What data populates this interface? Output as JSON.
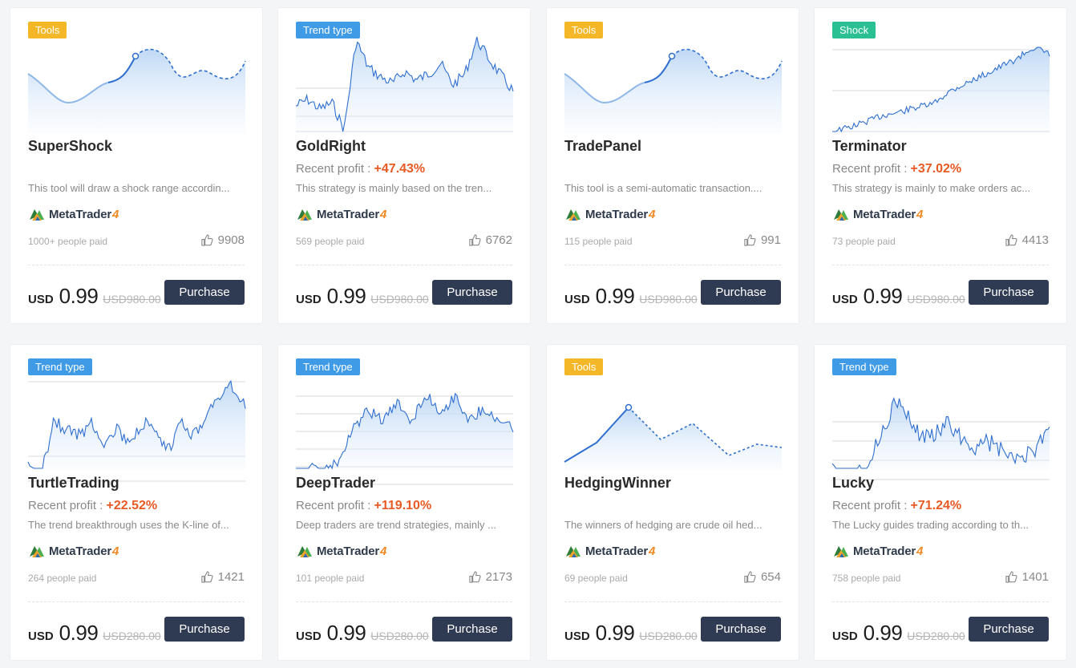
{
  "colors": {
    "tools": "#f4b728",
    "trend": "#3f9be6",
    "shock": "#2bbf94",
    "profit": "#e85a24",
    "button": "#2f3a53"
  },
  "cards": [
    {
      "tag": "Tools",
      "tag_color": "tools",
      "chart": "tools",
      "name": "SuperShock",
      "profit_label": "",
      "profit_value": "",
      "desc": "This tool will draw a shock range accordin...",
      "platform": "MetaTrader",
      "platform_ver": "4",
      "paid": "1000+ people paid",
      "likes": "9908",
      "currency": "USD",
      "price": "0.99",
      "old_price": "USD980.00",
      "button": "Purchase"
    },
    {
      "tag": "Trend type",
      "tag_color": "trend",
      "chart": "goldright",
      "name": "GoldRight",
      "profit_label": "Recent profit : ",
      "profit_value": "+47.43%",
      "desc": "This strategy is mainly based on the tren...",
      "platform": "MetaTrader",
      "platform_ver": "4",
      "paid": "569 people paid",
      "likes": "6762",
      "currency": "USD",
      "price": "0.99",
      "old_price": "USD980.00",
      "button": "Purchase"
    },
    {
      "tag": "Tools",
      "tag_color": "tools",
      "chart": "tools",
      "name": "TradePanel",
      "profit_label": "",
      "profit_value": "",
      "desc": "This tool is a semi-automatic transaction....",
      "platform": "MetaTrader",
      "platform_ver": "4",
      "paid": "115 people paid",
      "likes": "991",
      "currency": "USD",
      "price": "0.99",
      "old_price": "USD980.00",
      "button": "Purchase"
    },
    {
      "tag": "Shock",
      "tag_color": "shock",
      "chart": "terminator",
      "name": "Terminator",
      "profit_label": "Recent profit : ",
      "profit_value": "+37.02%",
      "desc": "This strategy is mainly to make orders ac...",
      "platform": "MetaTrader",
      "platform_ver": "4",
      "paid": "73 people paid",
      "likes": "4413",
      "currency": "USD",
      "price": "0.99",
      "old_price": "USD980.00",
      "button": "Purchase"
    },
    {
      "tag": "Trend type",
      "tag_color": "trend",
      "chart": "turtle",
      "name": "TurtleTrading",
      "profit_label": "Recent profit : ",
      "profit_value": "+22.52%",
      "desc": "The trend breakthrough uses the K-line of...",
      "platform": "MetaTrader",
      "platform_ver": "4",
      "paid": "264 people paid",
      "likes": "1421",
      "currency": "USD",
      "price": "0.99",
      "old_price": "USD280.00",
      "button": "Purchase"
    },
    {
      "tag": "Trend type",
      "tag_color": "trend",
      "chart": "deep",
      "name": "DeepTrader",
      "profit_label": "Recent profit : ",
      "profit_value": "+119.10%",
      "desc": "Deep traders are trend strategies, mainly ...",
      "platform": "MetaTrader",
      "platform_ver": "4",
      "paid": "101 people paid",
      "likes": "2173",
      "currency": "USD",
      "price": "0.99",
      "old_price": "USD280.00",
      "button": "Purchase"
    },
    {
      "tag": "Tools",
      "tag_color": "tools",
      "chart": "hedging",
      "name": "HedgingWinner",
      "profit_label": "",
      "profit_value": "",
      "desc": "The winners of hedging are crude oil hed...",
      "platform": "MetaTrader",
      "platform_ver": "4",
      "paid": "69 people paid",
      "likes": "654",
      "currency": "USD",
      "price": "0.99",
      "old_price": "USD280.00",
      "button": "Purchase"
    },
    {
      "tag": "Trend type",
      "tag_color": "trend",
      "chart": "lucky",
      "name": "Lucky",
      "profit_label": "Recent profit : ",
      "profit_value": "+71.24%",
      "desc": "The Lucky guides trading according to th...",
      "platform": "MetaTrader",
      "platform_ver": "4",
      "paid": "758 people paid",
      "likes": "1401",
      "currency": "USD",
      "price": "0.99",
      "old_price": "USD280.00",
      "button": "Purchase"
    }
  ]
}
